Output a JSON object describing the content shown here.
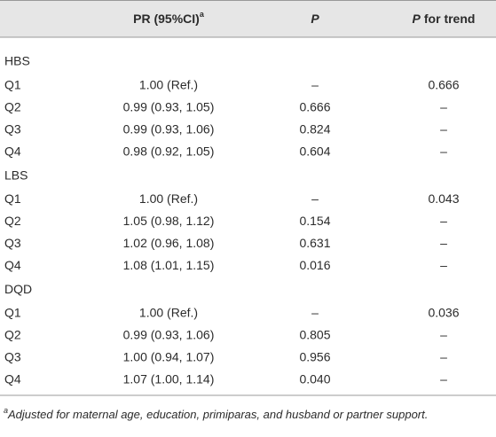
{
  "table": {
    "columns": [
      {
        "text": "PR (95%CI)",
        "sup": "a"
      },
      {
        "italic": "P"
      },
      {
        "italic": "P",
        "text": "for trend"
      }
    ],
    "groups": [
      {
        "label": "HBS",
        "rows": [
          [
            "Q1",
            "1.00 (Ref.)",
            "–",
            "0.666"
          ],
          [
            "Q2",
            "0.99 (0.93, 1.05)",
            "0.666",
            "–"
          ],
          [
            "Q3",
            "0.99 (0.93, 1.06)",
            "0.824",
            "–"
          ],
          [
            "Q4",
            "0.98 (0.92, 1.05)",
            "0.604",
            "–"
          ]
        ]
      },
      {
        "label": "LBS",
        "rows": [
          [
            "Q1",
            "1.00 (Ref.)",
            "–",
            "0.043"
          ],
          [
            "Q2",
            "1.05 (0.98, 1.12)",
            "0.154",
            "–"
          ],
          [
            "Q3",
            "1.02 (0.96, 1.08)",
            "0.631",
            "–"
          ],
          [
            "Q4",
            "1.08 (1.01, 1.15)",
            "0.016",
            "–"
          ]
        ]
      },
      {
        "label": "DQD",
        "rows": [
          [
            "Q1",
            "1.00 (Ref.)",
            "–",
            "0.036"
          ],
          [
            "Q2",
            "0.99 (0.93, 1.06)",
            "0.805",
            "–"
          ],
          [
            "Q3",
            "1.00 (0.94, 1.07)",
            "0.956",
            "–"
          ],
          [
            "Q4",
            "1.07 (1.00, 1.14)",
            "0.040",
            "–"
          ]
        ]
      }
    ]
  },
  "footnote": {
    "marker": "a",
    "text": "Adjusted for maternal age, education, primiparas, and husband or partner support."
  }
}
